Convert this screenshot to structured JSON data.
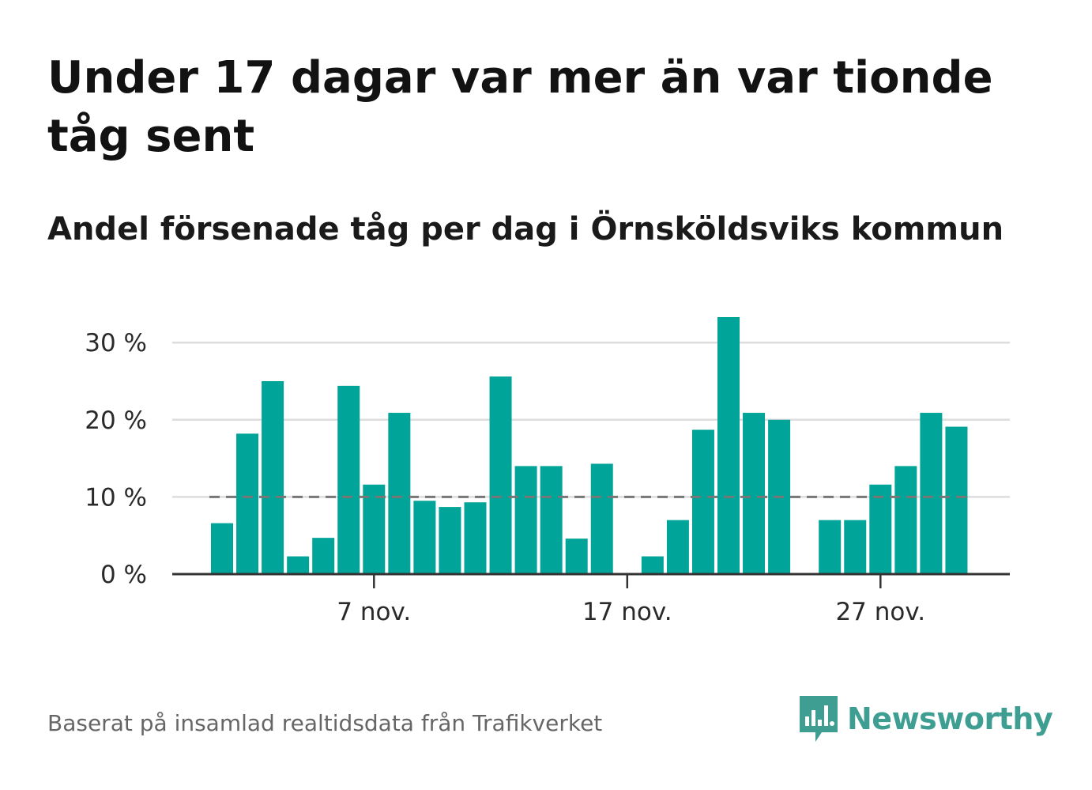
{
  "title": "Under 17 dagar var mer än var tionde tåg sent",
  "subtitle": "Andel försenade tåg per dag i Örnsköldsviks kommun",
  "footer": "Baserat på insamlad realtidsdata från Trafikverket",
  "brand": {
    "name": "Newsworthy",
    "color": "#3e9e92",
    "icon": "newsworthy-logo-icon"
  },
  "colors": {
    "bar": "#00a499",
    "reference": "#777777",
    "grid": "#dddddd",
    "axis": "#333333"
  },
  "chart_data": {
    "type": "bar",
    "x_start": "1 nov.",
    "categories": [
      "1 nov.",
      "2 nov.",
      "3 nov.",
      "4 nov.",
      "5 nov.",
      "6 nov.",
      "7 nov.",
      "8 nov.",
      "9 nov.",
      "10 nov.",
      "11 nov.",
      "12 nov.",
      "13 nov.",
      "14 nov.",
      "15 nov.",
      "16 nov.",
      "17 nov.",
      "18 nov.",
      "19 nov.",
      "20 nov.",
      "21 nov.",
      "22 nov.",
      "23 nov.",
      "24 nov.",
      "25 nov.",
      "26 nov.",
      "27 nov.",
      "28 nov.",
      "29 nov.",
      "30 nov."
    ],
    "values": [
      6.6,
      18.2,
      25.0,
      2.3,
      4.7,
      24.4,
      11.6,
      20.9,
      9.5,
      8.7,
      9.3,
      25.6,
      14.0,
      14.0,
      4.6,
      14.3,
      null,
      2.3,
      7.0,
      18.7,
      33.3,
      20.9,
      20.0,
      null,
      7.0,
      7.0,
      11.6,
      14.0,
      20.9,
      19.1
    ],
    "unit": "%",
    "ylim": [
      0,
      33.3
    ],
    "yticks": [
      0,
      10,
      20,
      30
    ],
    "ytick_labels": [
      "0 %",
      "10 %",
      "20 %",
      "30 %"
    ],
    "xticks": [
      "7 nov.",
      "17 nov.",
      "27 nov."
    ],
    "reference_line": {
      "value": 10,
      "style": "dashed"
    },
    "grid": true,
    "xlabel": "",
    "ylabel": ""
  }
}
